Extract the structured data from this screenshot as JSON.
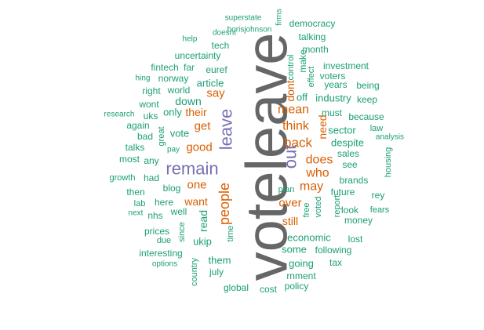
{
  "colors": {
    "largest": "#666666",
    "large": "#7570b3",
    "medium": "#d95f02",
    "small": "#1b9e77"
  },
  "words": [
    {
      "text": "voteleave",
      "color": "largest",
      "rotate": -90
    },
    {
      "text": "remain",
      "color": "large",
      "rotate": 0
    },
    {
      "text": "leave",
      "color": "large",
      "rotate": -90
    },
    {
      "text": "out",
      "color": "large",
      "rotate": -90
    },
    {
      "text": "people",
      "color": "medium",
      "rotate": -90
    },
    {
      "text": "back",
      "color": "medium",
      "rotate": 0
    },
    {
      "text": "think",
      "color": "medium",
      "rotate": 0
    },
    {
      "text": "mean",
      "color": "medium",
      "rotate": 0
    },
    {
      "text": "does",
      "color": "medium",
      "rotate": 0
    },
    {
      "text": "may",
      "color": "medium",
      "rotate": 0
    },
    {
      "text": "who",
      "color": "medium",
      "rotate": 0
    },
    {
      "text": "over",
      "color": "medium",
      "rotate": 0
    },
    {
      "text": "good",
      "color": "medium",
      "rotate": 0
    },
    {
      "text": "get",
      "color": "medium",
      "rotate": 0
    },
    {
      "text": "say",
      "color": "medium",
      "rotate": 0
    },
    {
      "text": "one",
      "color": "medium",
      "rotate": 0
    },
    {
      "text": "want",
      "color": "medium",
      "rotate": 0
    },
    {
      "text": "their",
      "color": "medium",
      "rotate": 0
    },
    {
      "text": "still",
      "color": "medium",
      "rotate": 0
    },
    {
      "text": "dont",
      "color": "medium",
      "rotate": -90
    },
    {
      "text": "need",
      "color": "medium",
      "rotate": -90
    },
    {
      "text": "superstate",
      "color": "small",
      "rotate": 0
    },
    {
      "text": "firms",
      "color": "small",
      "rotate": -90
    },
    {
      "text": "democracy",
      "color": "small",
      "rotate": 0
    },
    {
      "text": "help",
      "color": "small",
      "rotate": 0
    },
    {
      "text": "doesnt",
      "color": "small",
      "rotate": 0
    },
    {
      "text": "borisjohnson",
      "color": "small",
      "rotate": 0
    },
    {
      "text": "talking",
      "color": "small",
      "rotate": 0
    },
    {
      "text": "tech",
      "color": "small",
      "rotate": 0
    },
    {
      "text": "month",
      "color": "small",
      "rotate": 0
    },
    {
      "text": "uncertainty",
      "color": "small",
      "rotate": 0
    },
    {
      "text": "make",
      "color": "small",
      "rotate": -90
    },
    {
      "text": "control",
      "color": "small",
      "rotate": -90
    },
    {
      "text": "investment",
      "color": "small",
      "rotate": 0
    },
    {
      "text": "fintech",
      "color": "small",
      "rotate": 0
    },
    {
      "text": "far",
      "color": "small",
      "rotate": 0
    },
    {
      "text": "euref",
      "color": "small",
      "rotate": 0
    },
    {
      "text": "voters",
      "color": "small",
      "rotate": 0
    },
    {
      "text": "effect",
      "color": "small",
      "rotate": -90
    },
    {
      "text": "hing",
      "color": "small",
      "rotate": 0
    },
    {
      "text": "norway",
      "color": "small",
      "rotate": 0
    },
    {
      "text": "article",
      "color": "small",
      "rotate": 0
    },
    {
      "text": "years",
      "color": "small",
      "rotate": 0
    },
    {
      "text": "being",
      "color": "small",
      "rotate": 0
    },
    {
      "text": "right",
      "color": "small",
      "rotate": 0
    },
    {
      "text": "world",
      "color": "small",
      "rotate": 0
    },
    {
      "text": "off",
      "color": "small",
      "rotate": 0
    },
    {
      "text": "industry",
      "color": "small",
      "rotate": 0
    },
    {
      "text": "keep",
      "color": "small",
      "rotate": 0
    },
    {
      "text": "wont",
      "color": "small",
      "rotate": 0
    },
    {
      "text": "down",
      "color": "small",
      "rotate": 0
    },
    {
      "text": "research",
      "color": "small",
      "rotate": 0
    },
    {
      "text": "uks",
      "color": "small",
      "rotate": 0
    },
    {
      "text": "only",
      "color": "small",
      "rotate": 0
    },
    {
      "text": "must",
      "color": "small",
      "rotate": 0
    },
    {
      "text": "because",
      "color": "small",
      "rotate": 0
    },
    {
      "text": "again",
      "color": "small",
      "rotate": 0
    },
    {
      "text": "sector",
      "color": "small",
      "rotate": 0
    },
    {
      "text": "law",
      "color": "small",
      "rotate": 0
    },
    {
      "text": "bad",
      "color": "small",
      "rotate": 0
    },
    {
      "text": "vote",
      "color": "small",
      "rotate": 0
    },
    {
      "text": "despite",
      "color": "small",
      "rotate": 0
    },
    {
      "text": "analysis",
      "color": "small",
      "rotate": 0
    },
    {
      "text": "great",
      "color": "small",
      "rotate": -90
    },
    {
      "text": "most",
      "color": "small",
      "rotate": 0
    },
    {
      "text": "talks",
      "color": "small",
      "rotate": 0
    },
    {
      "text": "pay",
      "color": "small",
      "rotate": 0
    },
    {
      "text": "sales",
      "color": "small",
      "rotate": 0
    },
    {
      "text": "any",
      "color": "small",
      "rotate": 0
    },
    {
      "text": "see",
      "color": "small",
      "rotate": 0
    },
    {
      "text": "housing",
      "color": "small",
      "rotate": -90
    },
    {
      "text": "growth",
      "color": "small",
      "rotate": 0
    },
    {
      "text": "had",
      "color": "small",
      "rotate": 0
    },
    {
      "text": "brands",
      "color": "small",
      "rotate": 0
    },
    {
      "text": "blog",
      "color": "small",
      "rotate": 0
    },
    {
      "text": "then",
      "color": "small",
      "rotate": 0
    },
    {
      "text": "plan",
      "color": "small",
      "rotate": 0
    },
    {
      "text": "future",
      "color": "small",
      "rotate": 0
    },
    {
      "text": "rey",
      "color": "small",
      "rotate": 0
    },
    {
      "text": "lab",
      "color": "small",
      "rotate": 0
    },
    {
      "text": "here",
      "color": "small",
      "rotate": 0
    },
    {
      "text": "next",
      "color": "small",
      "rotate": 0
    },
    {
      "text": "nhs",
      "color": "small",
      "rotate": 0
    },
    {
      "text": "well",
      "color": "small",
      "rotate": 0
    },
    {
      "text": "free",
      "color": "small",
      "rotate": -90
    },
    {
      "text": "voted",
      "color": "small",
      "rotate": -90
    },
    {
      "text": "report",
      "color": "small",
      "rotate": -90
    },
    {
      "text": "look",
      "color": "small",
      "rotate": 0
    },
    {
      "text": "fears",
      "color": "small",
      "rotate": 0
    },
    {
      "text": "money",
      "color": "small",
      "rotate": 0
    },
    {
      "text": "read",
      "color": "small",
      "rotate": -90
    },
    {
      "text": "prices",
      "color": "small",
      "rotate": 0
    },
    {
      "text": "since",
      "color": "small",
      "rotate": -90
    },
    {
      "text": "time",
      "color": "small",
      "rotate": -90
    },
    {
      "text": "economic",
      "color": "small",
      "rotate": 0
    },
    {
      "text": "due",
      "color": "small",
      "rotate": 0
    },
    {
      "text": "ukip",
      "color": "small",
      "rotate": 0
    },
    {
      "text": "lost",
      "color": "small",
      "rotate": 0
    },
    {
      "text": "some",
      "color": "small",
      "rotate": 0
    },
    {
      "text": "following",
      "color": "small",
      "rotate": 0
    },
    {
      "text": "interesting",
      "color": "small",
      "rotate": 0
    },
    {
      "text": "options",
      "color": "small",
      "rotate": 0
    },
    {
      "text": "them",
      "color": "small",
      "rotate": 0
    },
    {
      "text": "going",
      "color": "small",
      "rotate": 0
    },
    {
      "text": "tax",
      "color": "small",
      "rotate": 0
    },
    {
      "text": "country",
      "color": "small",
      "rotate": -90
    },
    {
      "text": "july",
      "color": "small",
      "rotate": 0
    },
    {
      "text": "rnment",
      "color": "small",
      "rotate": 0
    },
    {
      "text": "global",
      "color": "small",
      "rotate": 0
    },
    {
      "text": "cost",
      "color": "small",
      "rotate": 0
    },
    {
      "text": "policy",
      "color": "small",
      "rotate": 0
    }
  ]
}
